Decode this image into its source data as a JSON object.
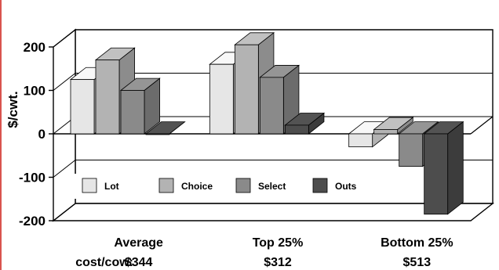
{
  "chart_data": {
    "type": "bar",
    "ylabel": "$/cwt.",
    "ylim": [
      -200,
      200
    ],
    "yticks": [
      200,
      100,
      0,
      -100,
      -200
    ],
    "categories": [
      "Average",
      "Top 25%",
      "Bottom 25%"
    ],
    "cost_label": "cost/cow:",
    "costs": [
      "$344",
      "$312",
      "$513"
    ],
    "series": [
      {
        "name": "Lot",
        "color": "#e6e6e6",
        "values": [
          125,
          160,
          -30
        ]
      },
      {
        "name": "Choice",
        "color": "#b3b3b3",
        "values": [
          170,
          205,
          10
        ]
      },
      {
        "name": "Select",
        "color": "#8a8a8a",
        "values": [
          100,
          130,
          -75
        ]
      },
      {
        "name": "Outs",
        "color": "#4d4d4d",
        "values": [
          0,
          20,
          -185
        ]
      }
    ],
    "legend_position": "bottom-center",
    "grid": false
  }
}
